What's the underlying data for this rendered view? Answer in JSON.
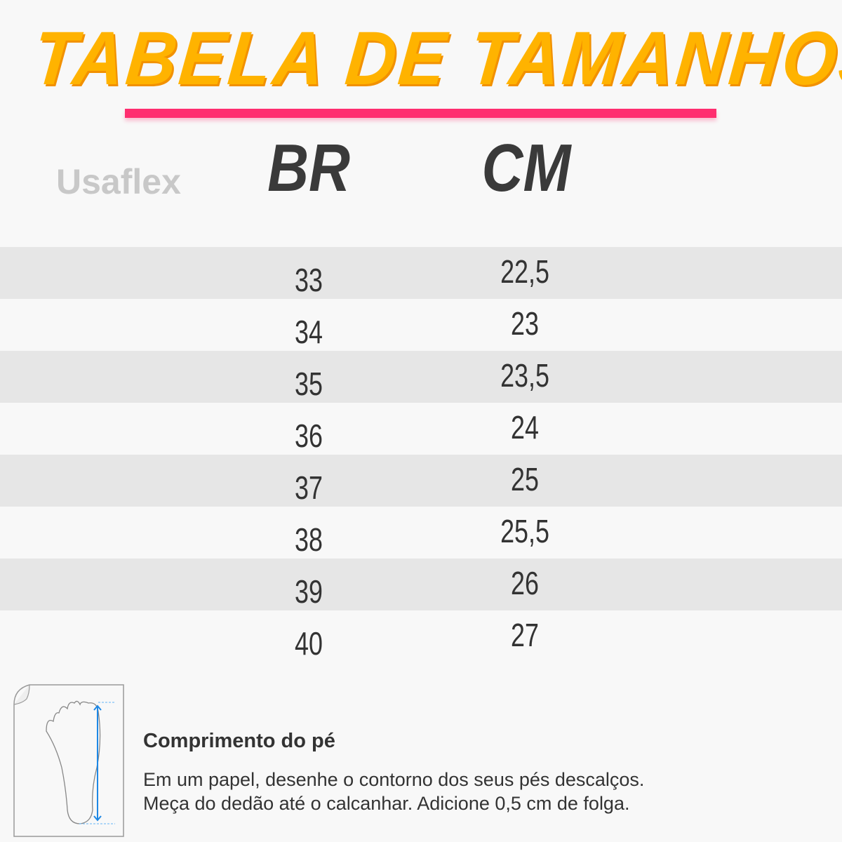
{
  "title": "TABELA DE TAMANHOS",
  "logo": "Usaflex",
  "headers": {
    "br": "BR",
    "cm": "CM"
  },
  "rows": [
    {
      "br": "33",
      "cm": "22,5"
    },
    {
      "br": "34",
      "cm": "23"
    },
    {
      "br": "35",
      "cm": "23,5"
    },
    {
      "br": "36",
      "cm": "24"
    },
    {
      "br": "37",
      "cm": "25"
    },
    {
      "br": "38",
      "cm": "25,5"
    },
    {
      "br": "39",
      "cm": "26"
    },
    {
      "br": "40",
      "cm": "27"
    }
  ],
  "info": {
    "title": "Comprimento do pé",
    "lines": [
      "Em um papel, desenhe o contorno dos seus pés descalços.",
      "Meça do dedão até o calcanhar. Adicione 0,5 cm de folga."
    ]
  },
  "colors": {
    "title": "#ffb300",
    "accent": "#ff2d6f",
    "measure": "#1e88e5"
  }
}
